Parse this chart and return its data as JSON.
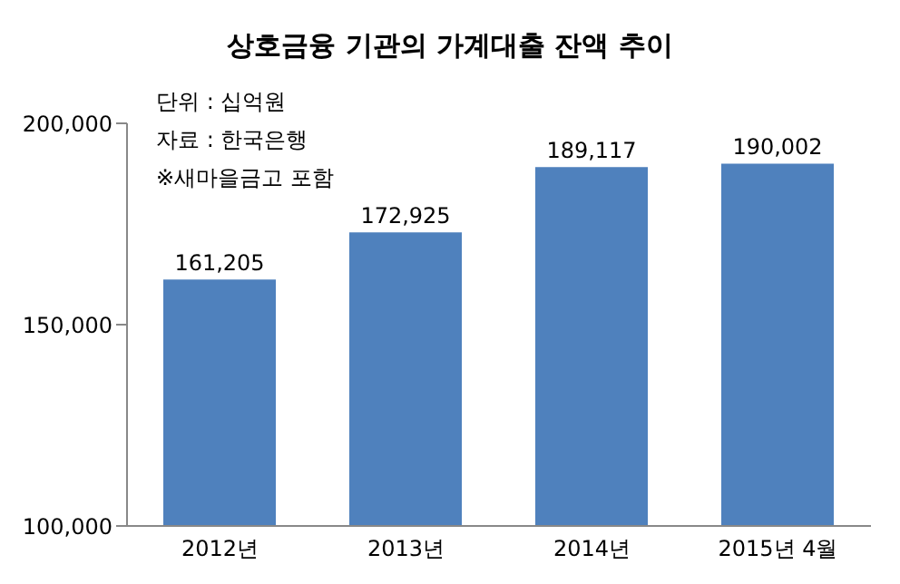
{
  "chart_data": {
    "type": "bar",
    "title": "상호금융 기관의 가계대출 잔액 추이",
    "annotations": [
      "단위 : 십억원",
      "자료 : 한국은행",
      "※새마을금고 포함"
    ],
    "categories": [
      "2012년",
      "2013년",
      "2014년",
      "2015년 4월"
    ],
    "values": [
      161205,
      172925,
      189117,
      190002
    ],
    "color": "#4f81bd",
    "value_labels": [
      "161,205",
      "172,925",
      "189,117",
      "190,002"
    ],
    "ylim": [
      100000,
      200000
    ],
    "yticks": [
      {
        "value": 100000,
        "label": "100,000"
      },
      {
        "value": 150000,
        "label": "150,000"
      },
      {
        "value": 200000,
        "label": "200,000"
      }
    ],
    "grid": false,
    "legend": false
  }
}
